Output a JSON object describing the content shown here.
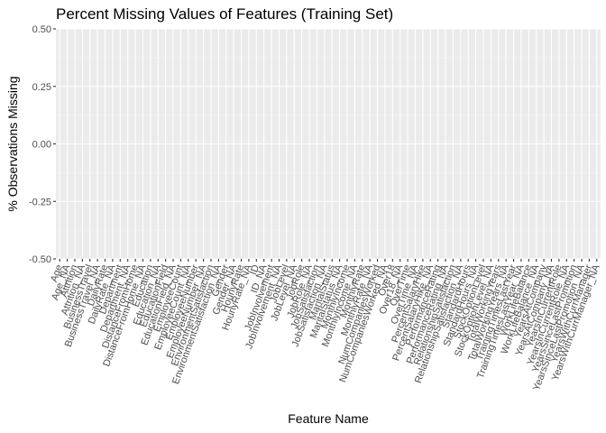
{
  "chart_data": {
    "type": "bar",
    "title": "Percent Missing Values of Features (Training Set)",
    "xlabel": "Feature Name",
    "ylabel": "% Observations Missing",
    "ylim": [
      -0.5,
      0.5
    ],
    "yticks": [
      "-0.50",
      "-0.25",
      "0.00",
      "0.25",
      "0.50"
    ],
    "grid": true,
    "categories": [
      "Age",
      "Age_NA",
      "Attrition",
      "Attrition_NA",
      "BusinessTravel",
      "BusinessTravel_NA",
      "DailyRate",
      "DailyRate_NA",
      "Department",
      "Department_NA",
      "DistanceFromHome",
      "DistanceFromHome_NA",
      "Education",
      "Education_NA",
      "EducationField",
      "EducationField_NA",
      "EmployeeCount",
      "EmployeeCount_NA",
      "EmployeeNumber",
      "EmployeeNumber_NA",
      "EnvironmentSatisfaction",
      "EnvironmentSatisfaction_NA",
      "Gender",
      "Gender_NA",
      "HourlyRate",
      "HourlyRate_NA",
      "ID",
      "ID_NA",
      "JobInvolvement",
      "JobInvolvement_NA",
      "JobLevel",
      "JobLevel_NA",
      "JobRole",
      "JobRole_NA",
      "JobSatisfaction",
      "JobSatisfaction_NA",
      "MaritalStatus",
      "MaritalStatus_NA",
      "MonthlyIncome",
      "MonthlyIncome_NA",
      "MonthlyRate",
      "MonthlyRate_NA",
      "NumCompaniesWorked",
      "NumCompaniesWorked_NA",
      "Over18",
      "Over18_NA",
      "OverTime",
      "OverTime_NA",
      "PercentSalaryHike",
      "PercentSalaryHike_NA",
      "PerformanceRating",
      "PerformanceRating_NA",
      "RelationshipSatisfaction",
      "RelationshipSatisfaction_NA",
      "StandardHours",
      "StandardHours_NA",
      "StockOptionLevel",
      "StockOptionLevel_NA",
      "TotalWorkingYears",
      "TotalWorkingYears_NA",
      "TrainingTimesLastYear",
      "TrainingTimesLastYear_NA",
      "WorkLifeBalance",
      "WorkLifeBalance_NA",
      "YearsAtCompany",
      "YearsAtCompany_NA",
      "YearsInCurrentRole",
      "YearsInCurrentRole_NA",
      "YearsSinceLastPromotion",
      "YearsSinceLastPromotion_NA",
      "YearsWithCurrManager",
      "YearsWithCurrManager_NA"
    ],
    "values": [
      0,
      0,
      0,
      0,
      0,
      0,
      0,
      0,
      0,
      0,
      0,
      0,
      0,
      0,
      0,
      0,
      0,
      0,
      0,
      0,
      0,
      0,
      0,
      0,
      0,
      0,
      0,
      0,
      0,
      0,
      0,
      0,
      0,
      0,
      0,
      0,
      0,
      0,
      0,
      0,
      0,
      0,
      0,
      0,
      0,
      0,
      0,
      0,
      0,
      0,
      0,
      0,
      0,
      0,
      0,
      0,
      0,
      0,
      0,
      0,
      0,
      0,
      0,
      0,
      0,
      0,
      0,
      0,
      0,
      0,
      0,
      0
    ],
    "colors": {
      "panel": "#ebebeb",
      "grid_major": "#ffffff",
      "grid_minor": "#f5f5f5",
      "tick_text": "#4d4d4d",
      "tick_mark": "#333333",
      "bar": "#595959"
    }
  }
}
